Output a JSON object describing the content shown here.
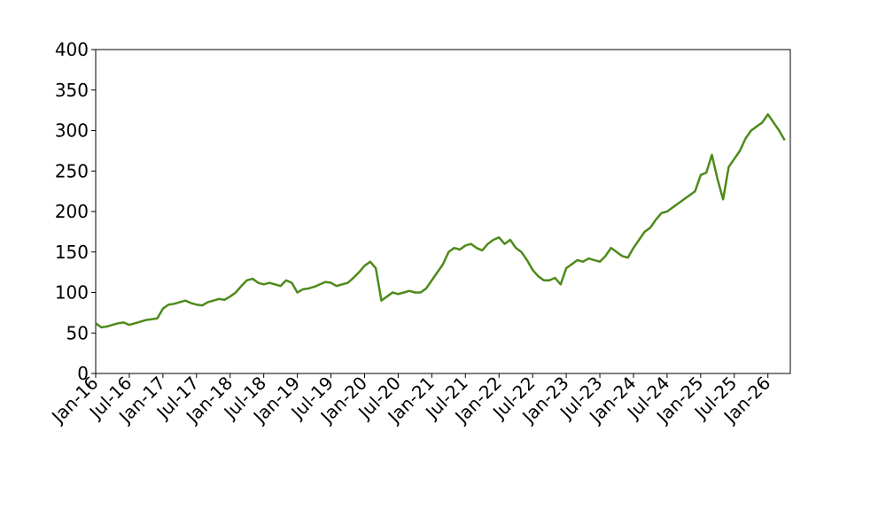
{
  "chart_data": {
    "type": "line",
    "x": [
      "2016-01",
      "2016-02",
      "2016-03",
      "2016-04",
      "2016-05",
      "2016-06",
      "2016-07",
      "2016-08",
      "2016-09",
      "2016-10",
      "2016-11",
      "2016-12",
      "2017-01",
      "2017-02",
      "2017-03",
      "2017-04",
      "2017-05",
      "2017-06",
      "2017-07",
      "2017-08",
      "2017-09",
      "2017-10",
      "2017-11",
      "2017-12",
      "2018-01",
      "2018-02",
      "2018-03",
      "2018-04",
      "2018-05",
      "2018-06",
      "2018-07",
      "2018-08",
      "2018-09",
      "2018-10",
      "2018-11",
      "2018-12",
      "2019-01",
      "2019-02",
      "2019-03",
      "2019-04",
      "2019-05",
      "2019-06",
      "2019-07",
      "2019-08",
      "2019-09",
      "2019-10",
      "2019-11",
      "2019-12",
      "2020-01",
      "2020-02",
      "2020-03",
      "2020-04",
      "2020-05",
      "2020-06",
      "2020-07",
      "2020-08",
      "2020-09",
      "2020-10",
      "2020-11",
      "2020-12",
      "2021-01",
      "2021-02",
      "2021-03",
      "2021-04",
      "2021-05",
      "2021-06",
      "2021-07",
      "2021-08",
      "2021-09",
      "2021-10",
      "2021-11",
      "2021-12",
      "2022-01",
      "2022-02",
      "2022-03",
      "2022-04",
      "2022-05",
      "2022-06",
      "2022-07",
      "2022-08",
      "2022-09",
      "2022-10",
      "2022-11",
      "2022-12",
      "2023-01",
      "2023-02",
      "2023-03",
      "2023-04",
      "2023-05",
      "2023-06",
      "2023-07",
      "2023-08",
      "2023-09",
      "2023-10",
      "2023-11",
      "2023-12",
      "2024-01",
      "2024-02",
      "2024-03",
      "2024-04",
      "2024-05",
      "2024-06",
      "2024-07",
      "2024-08",
      "2024-09",
      "2024-10",
      "2024-11",
      "2024-12",
      "2025-01",
      "2025-02",
      "2025-03",
      "2025-04",
      "2025-05",
      "2025-06",
      "2025-07",
      "2025-08",
      "2025-09",
      "2025-10",
      "2025-11",
      "2025-12",
      "2026-01",
      "2026-02",
      "2026-03",
      "2026-04"
    ],
    "series": [
      {
        "color": "#4d8a1a",
        "values": [
          62,
          57,
          58,
          60,
          62,
          63,
          60,
          62,
          64,
          66,
          67,
          68,
          80,
          85,
          86,
          88,
          90,
          87,
          85,
          84,
          88,
          90,
          92,
          91,
          95,
          100,
          108,
          115,
          117,
          112,
          110,
          112,
          110,
          108,
          115,
          112,
          100,
          104,
          105,
          107,
          110,
          113,
          112,
          108,
          110,
          112,
          118,
          125,
          133,
          138,
          130,
          90,
          95,
          100,
          98,
          100,
          102,
          100,
          100,
          105,
          115,
          125,
          135,
          150,
          155,
          153,
          158,
          160,
          155,
          152,
          160,
          165,
          168,
          160,
          165,
          155,
          150,
          140,
          128,
          120,
          115,
          115,
          118,
          110,
          130,
          135,
          140,
          138,
          142,
          140,
          138,
          145,
          155,
          150,
          145,
          143,
          155,
          165,
          175,
          180,
          190,
          198,
          200,
          205,
          210,
          215,
          220,
          225,
          245,
          248,
          270,
          240,
          215,
          255,
          265,
          275,
          290,
          300,
          305,
          310,
          320,
          310,
          300,
          288
        ]
      }
    ],
    "xlim": [
      "2016-01",
      "2026-05"
    ],
    "xticks": [
      {
        "value": "2016-01",
        "label": "Jan-16"
      },
      {
        "value": "2016-07",
        "label": "Jul-16"
      },
      {
        "value": "2017-01",
        "label": "Jan-17"
      },
      {
        "value": "2017-07",
        "label": "Jul-17"
      },
      {
        "value": "2018-01",
        "label": "Jan-18"
      },
      {
        "value": "2018-07",
        "label": "Jul-18"
      },
      {
        "value": "2019-01",
        "label": "Jan-19"
      },
      {
        "value": "2019-07",
        "label": "Jul-19"
      },
      {
        "value": "2020-01",
        "label": "Jan-20"
      },
      {
        "value": "2020-07",
        "label": "Jul-20"
      },
      {
        "value": "2021-01",
        "label": "Jan-21"
      },
      {
        "value": "2021-07",
        "label": "Jul-21"
      },
      {
        "value": "2022-01",
        "label": "Jan-22"
      },
      {
        "value": "2022-07",
        "label": "Jul-22"
      },
      {
        "value": "2023-01",
        "label": "Jan-23"
      },
      {
        "value": "2023-07",
        "label": "Jul-23"
      },
      {
        "value": "2024-01",
        "label": "Jan-24"
      },
      {
        "value": "2024-07",
        "label": "Jul-24"
      },
      {
        "value": "2025-01",
        "label": "Jan-25"
      },
      {
        "value": "2025-07",
        "label": "Jul-25"
      },
      {
        "value": "2026-01",
        "label": "Jan-26"
      }
    ],
    "ylim": [
      0,
      400
    ],
    "yticks": [
      0,
      50,
      100,
      150,
      200,
      250,
      300,
      350,
      400
    ],
    "grid": false
  }
}
